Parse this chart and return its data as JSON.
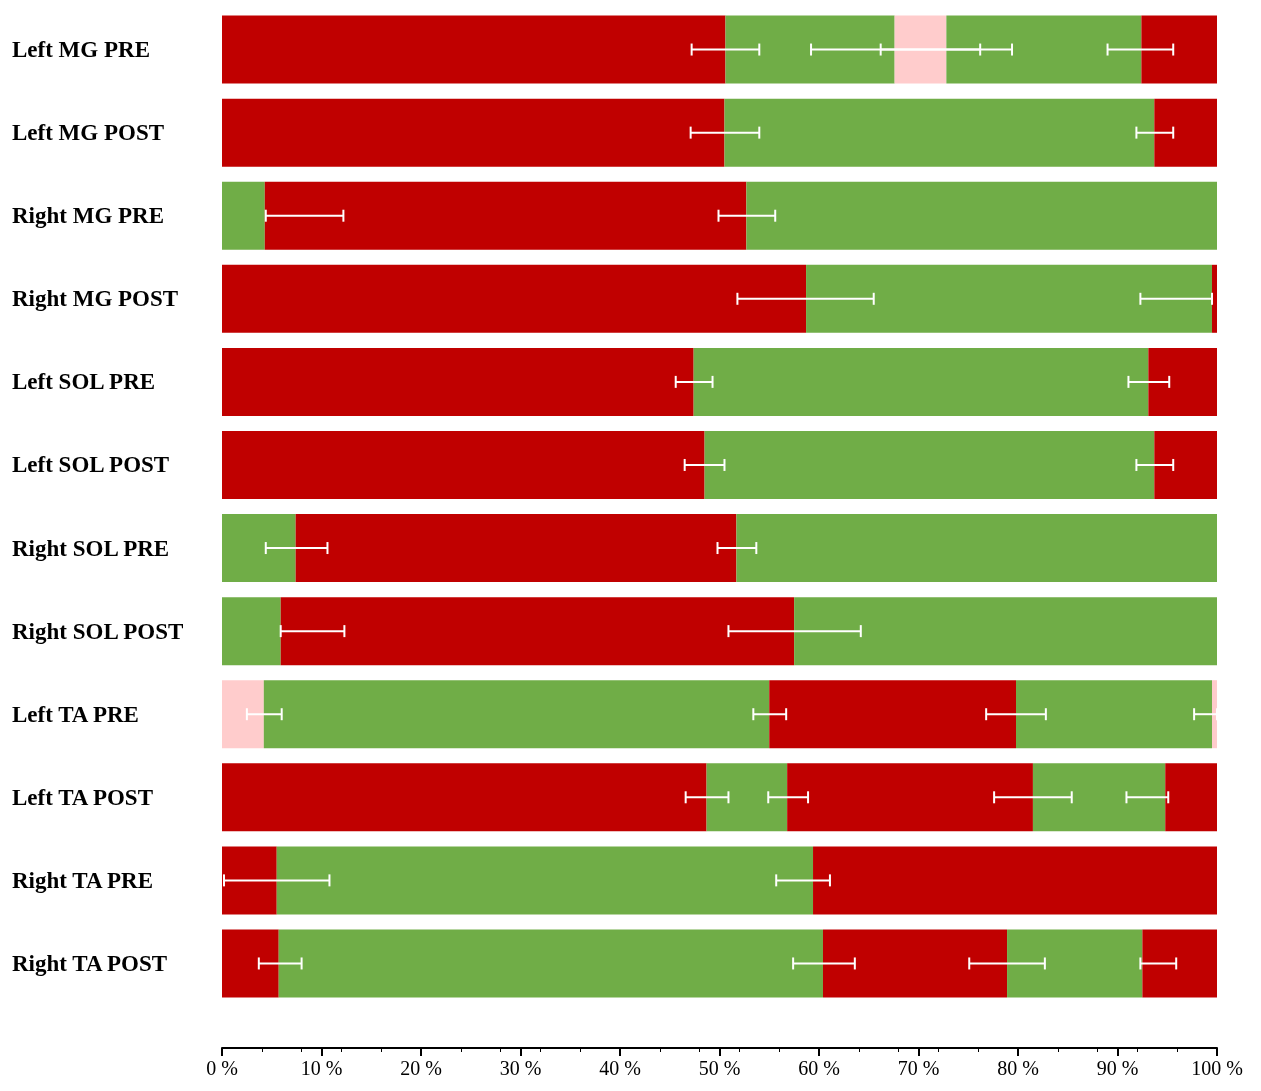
{
  "chart_data": {
    "type": "bar",
    "orientation": "horizontal",
    "stacked": true,
    "categories": [
      "Left MG PRE",
      "Left MG POST",
      "Right MG PRE",
      "Right MG POST",
      "Left SOL PRE",
      "Left SOL POST",
      "Right SOL PRE",
      "Right SOL POST",
      "Left TA PRE",
      "Left TA POST",
      "Right TA PRE",
      "Right TA POST"
    ],
    "xlim": [
      0,
      100
    ],
    "xticks": [
      {
        "value": 0,
        "label": "0 %"
      },
      {
        "value": 10,
        "label": "10 %"
      },
      {
        "value": 20,
        "label": "20 %"
      },
      {
        "value": 30,
        "label": "30 %"
      },
      {
        "value": 40,
        "label": "40 %"
      },
      {
        "value": 50,
        "label": "50 %"
      },
      {
        "value": 60,
        "label": "60 %"
      },
      {
        "value": 70,
        "label": "70 %"
      },
      {
        "value": 80,
        "label": "80 %"
      },
      {
        "value": 90,
        "label": "90 %"
      },
      {
        "value": 100,
        "label": "100 %"
      }
    ],
    "grid": false,
    "series": [
      {
        "values": [
          50.6,
          50.5,
          4.3,
          58.7,
          47.4,
          48.5,
          7.4,
          5.9,
          4.2,
          48.7,
          5.5,
          5.7
        ],
        "colors": [
          "#c00000",
          "#c00000",
          "#70ad47",
          "#c00000",
          "#c00000",
          "#c00000",
          "#70ad47",
          "#70ad47",
          "#ffcccc",
          "#c00000",
          "#c00000",
          "#c00000"
        ],
        "errors": [
          [
            47.2,
            54.0
          ],
          [
            47.1,
            54.0
          ],
          [
            4.4,
            12.2
          ],
          [
            51.8,
            65.5
          ],
          [
            45.6,
            49.3
          ],
          [
            46.5,
            50.5
          ],
          [
            4.4,
            10.6
          ],
          [
            5.9,
            12.3
          ],
          [
            2.5,
            6.0
          ],
          [
            46.6,
            50.9
          ],
          [
            0.2,
            10.8
          ],
          [
            3.7,
            8.0
          ]
        ]
      },
      {
        "values": [
          17.0,
          43.2,
          48.4,
          40.8,
          45.7,
          45.2,
          44.3,
          51.6,
          50.8,
          8.1,
          53.9,
          54.7
        ],
        "colors": [
          "#70ad47",
          "#70ad47",
          "#c00000",
          "#70ad47",
          "#70ad47",
          "#70ad47",
          "#c00000",
          "#c00000",
          "#70ad47",
          "#70ad47",
          "#70ad47",
          "#70ad47"
        ],
        "errors": [
          [
            59.2,
            76.2
          ],
          [
            91.9,
            95.6
          ],
          [
            49.9,
            55.6
          ],
          [
            92.3,
            99.5
          ],
          [
            91.1,
            95.2
          ],
          [
            91.9,
            95.6
          ],
          [
            49.8,
            53.7
          ],
          [
            50.9,
            64.2
          ],
          [
            53.4,
            56.7
          ],
          [
            54.9,
            58.9
          ],
          [
            55.7,
            61.1
          ],
          [
            57.4,
            63.6
          ]
        ]
      },
      {
        "values": [
          5.2,
          6.3,
          47.3,
          0.5,
          6.9,
          6.3,
          48.3,
          42.5,
          24.8,
          24.7,
          40.6,
          18.5
        ],
        "colors": [
          "#ffcccc",
          "#c00000",
          "#70ad47",
          "#c00000",
          "#c00000",
          "#c00000",
          "#70ad47",
          "#70ad47",
          "#c00000",
          "#c00000",
          "#c00000",
          "#c00000"
        ],
        "errors": [
          [
            66.2,
            79.4
          ],
          null,
          null,
          null,
          null,
          null,
          null,
          null,
          [
            76.8,
            82.8
          ],
          [
            77.6,
            85.4
          ],
          null,
          [
            75.1,
            82.7
          ]
        ]
      },
      {
        "values": [
          19.6,
          null,
          null,
          null,
          null,
          null,
          null,
          null,
          19.7,
          13.3,
          null,
          13.6
        ],
        "colors": [
          "#70ad47",
          null,
          null,
          null,
          null,
          null,
          null,
          null,
          "#70ad47",
          "#70ad47",
          null,
          "#70ad47"
        ],
        "errors": [
          [
            89.0,
            95.6
          ],
          null,
          null,
          null,
          null,
          null,
          null,
          null,
          [
            97.7,
            100.0
          ],
          [
            90.9,
            95.1
          ],
          null,
          [
            92.3,
            95.9
          ]
        ]
      },
      {
        "values": [
          7.6,
          null,
          null,
          null,
          null,
          null,
          null,
          null,
          0.5,
          5.2,
          null,
          7.5
        ],
        "colors": [
          "#c00000",
          null,
          null,
          null,
          null,
          null,
          null,
          null,
          "#ffcccc",
          "#c00000",
          null,
          "#c00000"
        ]
      }
    ]
  }
}
